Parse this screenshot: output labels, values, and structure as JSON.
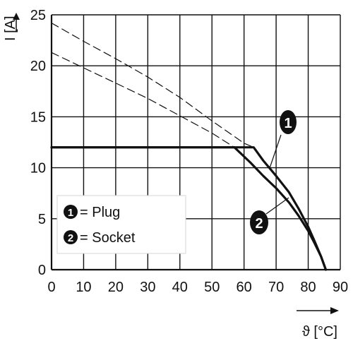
{
  "chart_data": {
    "type": "line",
    "xlabel": "ϑ [°C]",
    "ylabel": "I [A]",
    "xlim": [
      0,
      90
    ],
    "ylim": [
      0,
      25
    ],
    "xticks": [
      0,
      10,
      20,
      30,
      40,
      50,
      60,
      70,
      80,
      90
    ],
    "yticks": [
      0,
      5,
      10,
      15,
      20,
      25
    ],
    "grid": true,
    "legend_position": "lower-left",
    "legend": [
      {
        "marker": "1",
        "text": "= Plug"
      },
      {
        "marker": "2",
        "text": "= Socket"
      }
    ],
    "series": [
      {
        "marker": "1",
        "style": "solid",
        "x": [
          0,
          63,
          66,
          70,
          74,
          77,
          80,
          82,
          84,
          85.5
        ],
        "y": [
          12,
          12,
          10.7,
          9.2,
          7.6,
          6.0,
          4.2,
          2.8,
          1.3,
          0
        ]
      },
      {
        "marker": "2",
        "style": "solid",
        "x": [
          0,
          57,
          62,
          66,
          70,
          74,
          77,
          80,
          82,
          84,
          85.5
        ],
        "y": [
          12,
          12,
          10.5,
          9.2,
          8.0,
          6.6,
          5.3,
          3.8,
          2.6,
          1.3,
          0
        ]
      },
      {
        "marker": "1",
        "style": "dashed",
        "x": [
          0,
          10,
          20,
          30,
          40,
          50,
          60,
          63
        ],
        "y": [
          24.2,
          22.4,
          20.7,
          18.9,
          16.9,
          14.6,
          12.4,
          12
        ]
      },
      {
        "marker": "2",
        "style": "dashed",
        "x": [
          0,
          10,
          20,
          30,
          40,
          50,
          57
        ],
        "y": [
          21.3,
          19.8,
          18.3,
          16.8,
          15.1,
          13.4,
          12
        ]
      }
    ]
  }
}
